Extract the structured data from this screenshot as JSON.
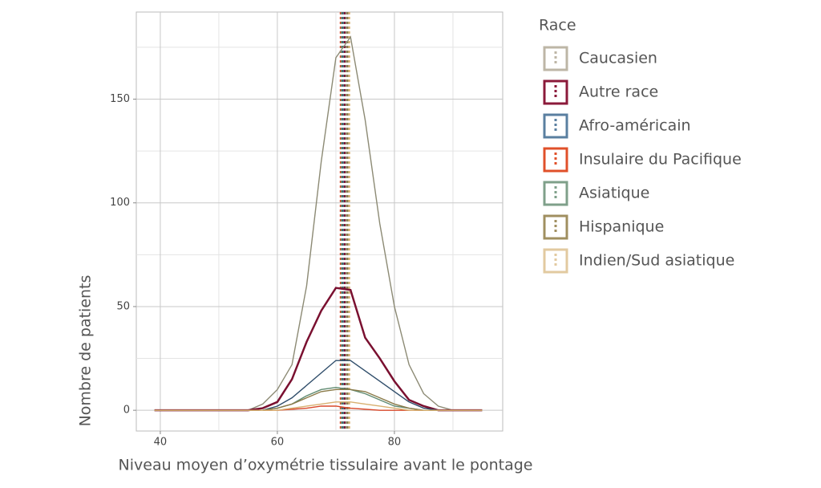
{
  "chart_data": {
    "type": "line",
    "x_label": "Niveau moyen d’oxymétrie tissulaire avant le pontage",
    "y_label": "Nombre de patients",
    "legend_title": "Race",
    "x": [
      39,
      55,
      57.5,
      60,
      62.5,
      65,
      67.5,
      70,
      72.5,
      75,
      77.5,
      80,
      82.5,
      85,
      87.5,
      90,
      95
    ],
    "series": [
      {
        "name": "Caucasien",
        "color": "#8c8a74",
        "legend_color": "#bdb6a6",
        "mean": 71.8,
        "values": [
          0,
          0,
          3,
          10,
          22,
          60,
          120,
          170,
          180,
          140,
          90,
          50,
          22,
          8,
          2,
          0,
          0
        ]
      },
      {
        "name": "Autre race",
        "color": "#7a1030",
        "legend_color": "#8b1a3a",
        "mean": 71.5,
        "values": [
          0,
          0,
          1,
          4,
          15,
          33,
          48,
          59,
          58,
          35,
          25,
          14,
          5,
          2,
          0,
          0,
          0
        ]
      },
      {
        "name": "Afro-américain",
        "color": "#2f4d6a",
        "legend_color": "#5a7fa0",
        "mean": 71.2,
        "values": [
          0,
          0,
          0,
          2,
          6,
          12,
          18,
          24,
          24,
          19,
          14,
          9,
          4,
          1,
          0,
          0,
          0
        ]
      },
      {
        "name": "Insulaire du Pacifique",
        "color": "#d9482a",
        "legend_color": "#e0502a",
        "mean": 70.8,
        "values": [
          0,
          0,
          0,
          0,
          0.5,
          1,
          2,
          2,
          1,
          0.5,
          0,
          0,
          0,
          0,
          0,
          0,
          0
        ]
      },
      {
        "name": "Asiatique",
        "color": "#5f8a70",
        "legend_color": "#7fa08a",
        "mean": 71.0,
        "values": [
          0,
          0,
          0,
          1,
          3,
          7,
          10,
          11,
          10,
          8,
          5,
          2,
          1,
          0,
          0,
          0,
          0
        ]
      },
      {
        "name": "Hispanique",
        "color": "#8a7a48",
        "legend_color": "#a08f60",
        "mean": 72.0,
        "values": [
          0,
          0,
          0,
          1,
          3,
          6,
          9,
          10,
          10,
          9,
          6,
          3,
          1,
          0,
          0,
          0,
          0
        ]
      },
      {
        "name": "Indien/Sud asiatique",
        "color": "#d8b070",
        "legend_color": "#e2caa0",
        "mean": 72.3,
        "values": [
          0,
          0,
          0,
          0,
          1,
          2,
          3,
          4,
          4,
          3,
          2,
          1,
          0,
          0,
          0,
          0,
          0
        ]
      }
    ],
    "xlim": [
      35.9,
      98.5
    ],
    "ylim": [
      -10,
      192
    ],
    "xticks": [
      40,
      60,
      80
    ],
    "yticks": [
      0,
      50,
      100,
      150
    ],
    "x_minor_grid": [
      50,
      70,
      90
    ],
    "y_minor_grid": [
      25,
      75,
      125,
      175
    ],
    "grid": true
  }
}
